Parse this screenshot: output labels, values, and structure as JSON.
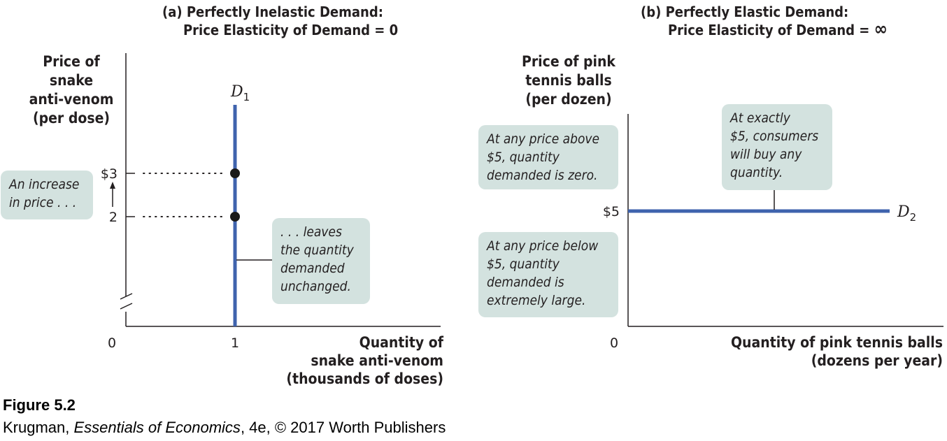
{
  "chart_data": [
    {
      "type": "line",
      "panel": "(a)",
      "title_line1": "(a) Perfectly Inelastic Demand:",
      "title_line2": "Price Elasticity of Demand = 0",
      "ylabel": [
        "Price of",
        "snake",
        "anti-venom",
        "(per dose)"
      ],
      "xlabel": [
        "Quantity of",
        "snake anti-venom",
        "(thousands of doses)"
      ],
      "curve_label": "D",
      "curve_subscript": "1",
      "origin_label": "0",
      "x_ticks": [
        {
          "value": 1,
          "label": "1"
        }
      ],
      "y_ticks": [
        {
          "value": 3,
          "label": "$3"
        },
        {
          "value": 2,
          "label": "2"
        }
      ],
      "y_axis_break": true,
      "series": [
        {
          "x": [
            1,
            1
          ],
          "y": [
            0,
            4.5
          ]
        }
      ],
      "points": [
        {
          "x": 1,
          "y": 3
        },
        {
          "x": 1,
          "y": 2
        }
      ],
      "annotations": [
        {
          "text": "An increase\nin price . . ."
        },
        {
          "text": ". . . leaves\nthe quantity\ndemanded\nunchanged."
        }
      ]
    },
    {
      "type": "line",
      "panel": "(b)",
      "title_line1": "(b) Perfectly Elastic Demand:",
      "title_line2": "Price Elasticity of Demand = ",
      "title_symbol": "∞",
      "ylabel": [
        "Price of pink",
        "tennis balls",
        "(per dozen)"
      ],
      "xlabel": [
        "Quantity of pink tennis balls",
        "(dozens per year)"
      ],
      "curve_label": "D",
      "curve_subscript": "2",
      "origin_label": "0",
      "y_ticks": [
        {
          "value": 5,
          "label": "$5"
        }
      ],
      "series": [
        {
          "y_constant": 5
        }
      ],
      "annotations": [
        {
          "text": "At any price above\n$5, quantity\ndemanded is zero."
        },
        {
          "text": "At any price below\n$5, quantity\ndemanded is\nextremely large."
        },
        {
          "text": "At exactly\n$5, consumers\nwill buy any\nquantity."
        }
      ]
    }
  ],
  "caption": {
    "figure": "Figure 5.2",
    "author": "Krugman, ",
    "book": "Essentials of Economics",
    "rest": ", 4e, © 2017 Worth Publishers"
  },
  "colors": {
    "curve": "#3f63ad",
    "axis": "#231f20",
    "note_bg": "#d3e2df",
    "point": "#1a1a1a"
  }
}
